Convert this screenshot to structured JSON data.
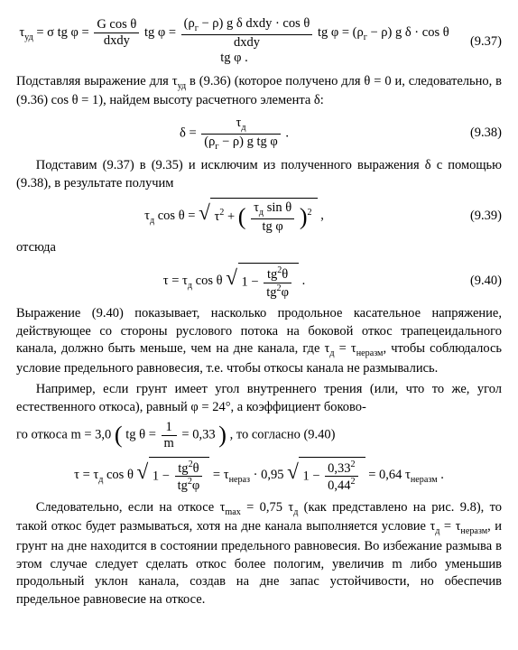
{
  "eq937": {
    "num": "(9.37)",
    "lhs": "τ<sub>уд</sub> = σ tg φ = ",
    "frac1_num": "G cos θ",
    "frac1_den": "dxdy",
    "mid1": " tg φ = ",
    "frac2_num": "(ρ<sub>г</sub> − ρ) g δ dxdy · cos θ",
    "frac2_den": "dxdy",
    "mid2": " tg φ = (ρ<sub>г</sub> − ρ) g δ · cos θ tg φ ."
  },
  "para1": "Подставляя выражение для τ<sub>уд</sub> в (9.36) (которое получено для θ = 0 и, следовательно, в (9.36) cos θ = 1), найдем высоту расчетного элемента δ:",
  "eq938": {
    "num": "(9.38)",
    "lhs": "δ = ",
    "frac_num": "τ<sub>д</sub>",
    "frac_den": "(ρ<sub>г</sub> − ρ) g tg φ",
    "rhs": " ."
  },
  "para2": "Подставим (9.37) в (9.35) и исключим из полученного выражения δ с помощью (9.38), в результате получим",
  "eq939": {
    "num": "(9.39)",
    "lhs": "τ<sub>д</sub> cos θ = ",
    "inside_pre": "τ<sup>2</sup> + ",
    "inner_frac_num": "τ<sub>д</sub> sin θ",
    "inner_frac_den": "tg φ",
    "rhs": " ,"
  },
  "word_otsyuda": "отсюда",
  "eq940": {
    "num": "(9.40)",
    "lhs": "τ = τ<sub>д</sub> cos θ ",
    "inside_pre": "1 − ",
    "frac_num": "tg<sup>2</sup>θ",
    "frac_den": "tg<sup>2</sup>φ",
    "rhs": " ."
  },
  "para3": "Выражение (9.40) показывает, насколько продольное касательное напряжение, действующее со стороны руслового потока на боковой откос трапецеидального канала, должно быть меньше, чем на дне канала, где τ<sub>д</sub> = τ<sub>неразм</sub>, чтобы соблюдалось условие предельного равновесия, т.е. чтобы откосы канала не размывались.",
  "para4": "Например, если грунт имеет угол внутреннего трения (или, что то же, угол естественного откоса), равный φ = 24°, а коэффициент боково-",
  "para5_pre": "го откоса m = 3,0 ",
  "para5_paren_pre": "tg θ = ",
  "para5_frac_num": "1",
  "para5_frac_den": "m",
  "para5_paren_post": " = 0,33",
  "para5_post": ", то согласно (9.40)",
  "eqExample": {
    "lhs": "τ = τ<sub>д</sub> cos θ ",
    "sqrt1_pre": "1 − ",
    "sqrt1_frac_num": "tg<sup>2</sup>θ",
    "sqrt1_frac_den": "tg<sup>2</sup>φ",
    "mid": " = τ<sub>нераз</sub> · 0,95 ",
    "sqrt2_pre": "1 − ",
    "sqrt2_frac_num": "0,33<sup>2</sup>",
    "sqrt2_frac_den": "0,44<sup>2</sup>",
    "rhs": " = 0,64 τ<sub>неразм</sub> ."
  },
  "para6": "Следовательно, если на откосе τ<sub>max</sub> = 0,75 τ<sub>д</sub> (как представлено на рис. 9.8), то такой откос будет размываться, хотя на дне канала выполняется условие τ<sub>д</sub> = τ<sub>неразм</sub>, и грунт на дне находится в состоянии предельного равновесия. Во избежание размыва в этом случае следует сделать откос более пологим, увеличив m либо уменьшив продольный уклон канала, создав на дне запас устойчивости, но обеспечив предельное равновесие на откосе."
}
